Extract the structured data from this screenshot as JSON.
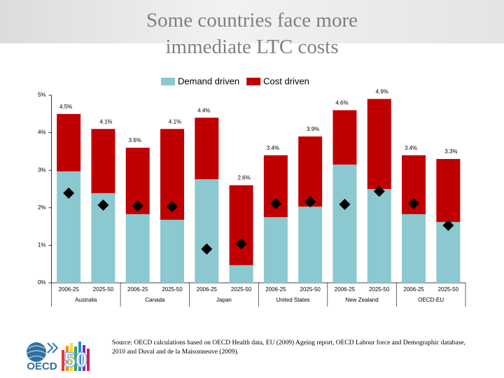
{
  "title_lines": [
    "Some countries face more",
    "immediate LTC costs"
  ],
  "chart_data": {
    "type": "stacked-bar",
    "categories": [
      "2006-25",
      "2025-50",
      "2006-25",
      "2025-50",
      "2006-25",
      "2025-50",
      "2006-25",
      "2025-50",
      "2006-25",
      "2025-50",
      "2006-25",
      "2025-50"
    ],
    "groups": [
      "Australia",
      "Canada",
      "Japan",
      "United States",
      "New Zealand",
      "OECD-EU"
    ],
    "series": [
      {
        "name": "Demand driven",
        "color": "#8bc8cf",
        "values": [
          2.97,
          2.39,
          1.83,
          1.68,
          2.76,
          0.47,
          1.75,
          2.03,
          3.15,
          2.5,
          1.83,
          1.62
        ]
      },
      {
        "name": "Cost driven",
        "color": "#c00000",
        "values": [
          1.53,
          1.71,
          1.77,
          2.42,
          1.64,
          2.13,
          1.65,
          1.87,
          1.45,
          2.4,
          1.57,
          1.68
        ]
      }
    ],
    "totals": {
      "values": [
        4.5,
        4.1,
        3.6,
        4.1,
        4.4,
        2.6,
        3.4,
        3.9,
        4.6,
        4.9,
        3.4,
        3.3
      ],
      "value_labels": [
        "4.5%",
        "4.1%",
        "3.6%",
        "4.1%",
        "4.4%",
        "2.6%",
        "3.4%",
        "3.9%",
        "4.6%",
        "4.9%",
        "3.4%",
        "3.3%"
      ]
    },
    "markers": {
      "color": "#000000",
      "values": [
        2.39,
        2.07,
        2.05,
        2.03,
        0.9,
        1.04,
        2.11,
        2.16,
        2.09,
        2.44,
        2.11,
        1.53
      ]
    },
    "ylim": [
      0,
      5
    ],
    "yticks": [
      {
        "value": 0,
        "label": "0%"
      },
      {
        "value": 1,
        "label": "1%"
      },
      {
        "value": 2,
        "label": "2%"
      },
      {
        "value": 3,
        "label": "3%"
      },
      {
        "value": 4,
        "label": "4%"
      },
      {
        "value": 5,
        "label": "5%"
      }
    ],
    "legend": "top"
  },
  "source": "Source: OECD calculations based on OECD Health data, EU (2009) Ageing report, OECD Labour force and Demographic database, 2010 and Duval and de la Maisonneuve (2009).",
  "logo": {
    "text": "OECD",
    "number": "50"
  }
}
